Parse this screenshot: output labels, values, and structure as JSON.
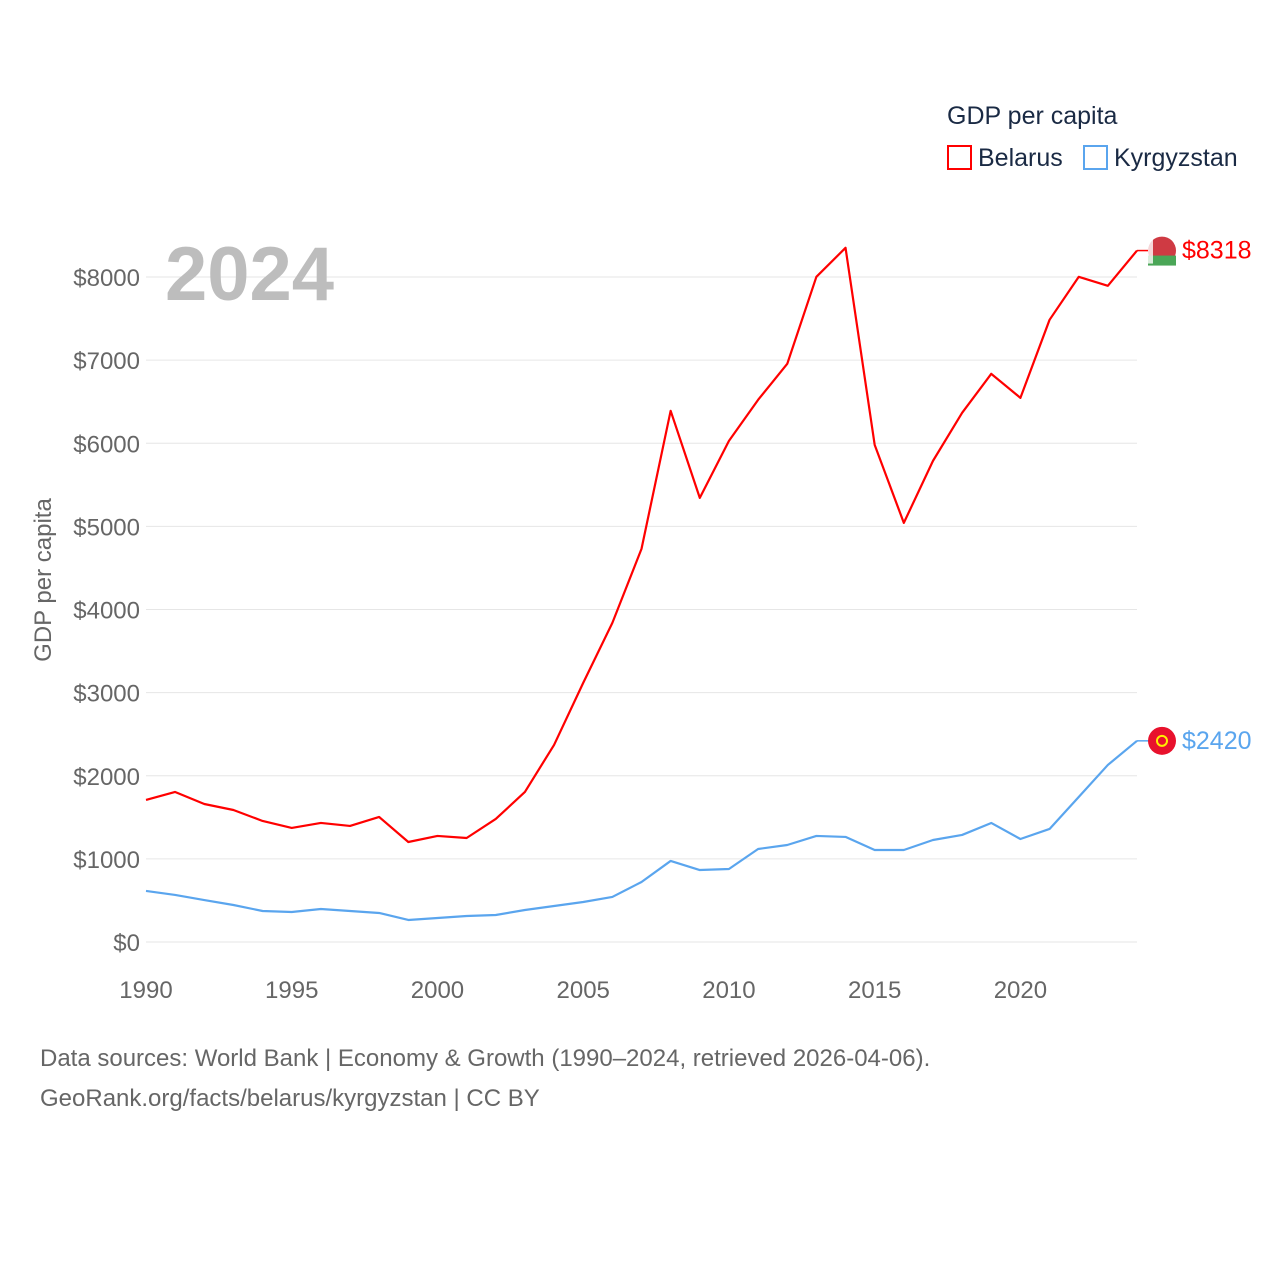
{
  "chart_data": {
    "type": "line",
    "watermark_year": "2024",
    "ylabel": "GDP per capita",
    "xlabel": "",
    "legend_title": "GDP per capita",
    "legend_position": "top-right",
    "ylim": [
      0,
      8000
    ],
    "xlim": [
      1990,
      2024
    ],
    "yticks": [
      0,
      1000,
      2000,
      3000,
      4000,
      5000,
      6000,
      7000,
      8000
    ],
    "ytick_labels": [
      "$0",
      "$1000",
      "$2000",
      "$3000",
      "$4000",
      "$5000",
      "$6000",
      "$7000",
      "$8000"
    ],
    "xticks": [
      1990,
      1995,
      2000,
      2005,
      2010,
      2015,
      2020
    ],
    "xtick_labels": [
      "1990",
      "1995",
      "2000",
      "2005",
      "2010",
      "2015",
      "2020"
    ],
    "grid": true,
    "x": [
      1990,
      1991,
      1992,
      1993,
      1994,
      1995,
      1996,
      1997,
      1998,
      1999,
      2000,
      2001,
      2002,
      2003,
      2004,
      2005,
      2006,
      2007,
      2008,
      2009,
      2010,
      2011,
      2012,
      2013,
      2014,
      2015,
      2016,
      2017,
      2018,
      2019,
      2020,
      2021,
      2022,
      2023,
      2024
    ],
    "series": [
      {
        "name": "Belarus",
        "color": "#ff0000",
        "end_label": "$8318",
        "values": [
          1709,
          1805,
          1660,
          1588,
          1456,
          1372,
          1432,
          1396,
          1504,
          1203,
          1276,
          1251,
          1480,
          1805,
          2371,
          3117,
          3839,
          4729,
          6390,
          5343,
          6029,
          6522,
          6955,
          8002,
          8351,
          5981,
          5042,
          5788,
          6366,
          6835,
          6546,
          7485,
          8002,
          7894,
          8318
        ]
      },
      {
        "name": "Kyrgyzstan",
        "color": "#5aa5ee",
        "end_label": "$2420",
        "values": [
          614,
          566,
          505,
          445,
          373,
          361,
          397,
          373,
          349,
          265,
          289,
          313,
          325,
          385,
          433,
          481,
          542,
          722,
          975,
          866,
          878,
          1119,
          1167,
          1276,
          1264,
          1107,
          1107,
          1227,
          1288,
          1432,
          1239,
          1360,
          1745,
          2130,
          2420
        ]
      }
    ]
  },
  "footer": {
    "line1": "Data sources: World Bank | Economy & Growth (1990–2024, retrieved 2026-04-06).",
    "line2": "GeoRank.org/facts/belarus/kyrgyzstan | CC BY"
  }
}
